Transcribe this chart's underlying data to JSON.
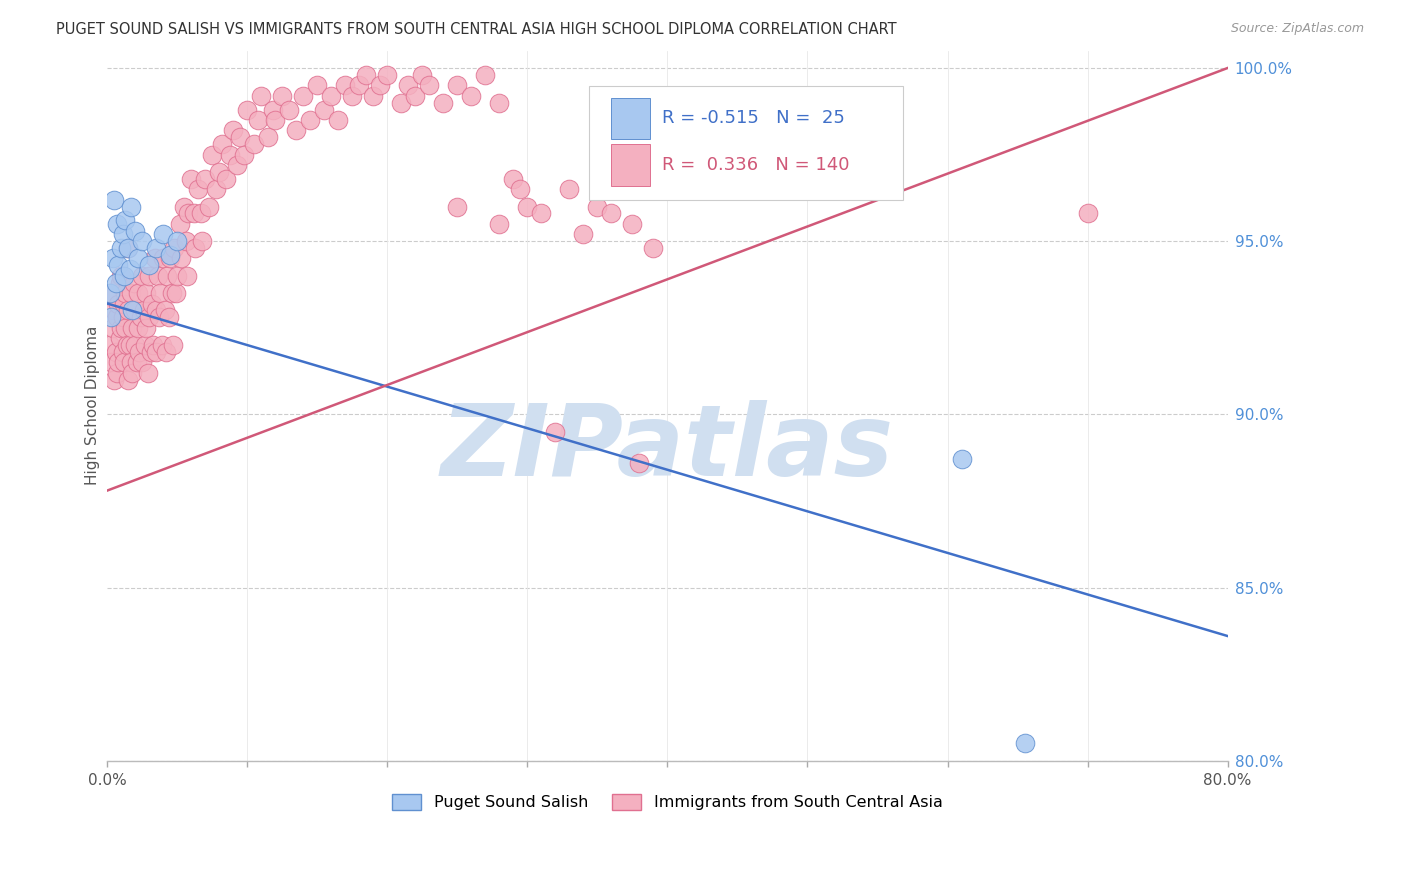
{
  "title": "PUGET SOUND SALISH VS IMMIGRANTS FROM SOUTH CENTRAL ASIA HIGH SCHOOL DIPLOMA CORRELATION CHART",
  "source": "Source: ZipAtlas.com",
  "ylabel": "High School Diploma",
  "x_min": 0.0,
  "x_max": 0.8,
  "y_min": 0.8,
  "y_max": 1.005,
  "y_ticks_right": [
    0.8,
    0.85,
    0.9,
    0.95,
    1.0
  ],
  "y_tick_labels_right": [
    "80.0%",
    "85.0%",
    "90.0%",
    "95.0%",
    "100.0%"
  ],
  "blue_fill": "#a8c8f0",
  "pink_fill": "#f4b0c0",
  "blue_edge": "#6090d0",
  "pink_edge": "#e07090",
  "blue_line_color": "#4070c8",
  "pink_line_color": "#d05878",
  "R_blue": -0.515,
  "N_blue": 25,
  "R_pink": 0.336,
  "N_pink": 140,
  "watermark": "ZIPatlas",
  "watermark_color": "#d0dff0",
  "legend_label_blue": "Puget Sound Salish",
  "legend_label_pink": "Immigrants from South Central Asia",
  "blue_line_x0": 0.0,
  "blue_line_y0": 0.932,
  "blue_line_x1": 0.8,
  "blue_line_y1": 0.836,
  "pink_line_x0": 0.0,
  "pink_line_y0": 0.878,
  "pink_line_x1": 0.8,
  "pink_line_y1": 1.0,
  "blue_x": [
    0.002,
    0.003,
    0.004,
    0.005,
    0.006,
    0.007,
    0.008,
    0.01,
    0.011,
    0.012,
    0.013,
    0.015,
    0.016,
    0.017,
    0.018,
    0.02,
    0.022,
    0.025,
    0.03,
    0.035,
    0.04,
    0.045,
    0.05,
    0.61,
    0.655
  ],
  "blue_y": [
    0.935,
    0.928,
    0.945,
    0.962,
    0.938,
    0.955,
    0.943,
    0.948,
    0.952,
    0.94,
    0.956,
    0.948,
    0.942,
    0.96,
    0.93,
    0.953,
    0.945,
    0.95,
    0.943,
    0.948,
    0.952,
    0.946,
    0.95,
    0.887,
    0.805
  ],
  "pink_x": [
    0.002,
    0.003,
    0.003,
    0.004,
    0.005,
    0.005,
    0.006,
    0.007,
    0.007,
    0.008,
    0.008,
    0.009,
    0.009,
    0.01,
    0.01,
    0.011,
    0.011,
    0.012,
    0.012,
    0.013,
    0.013,
    0.014,
    0.015,
    0.015,
    0.015,
    0.016,
    0.017,
    0.017,
    0.018,
    0.018,
    0.019,
    0.02,
    0.02,
    0.021,
    0.022,
    0.022,
    0.023,
    0.024,
    0.025,
    0.025,
    0.026,
    0.027,
    0.028,
    0.028,
    0.029,
    0.03,
    0.03,
    0.031,
    0.032,
    0.033,
    0.034,
    0.035,
    0.035,
    0.036,
    0.037,
    0.038,
    0.039,
    0.04,
    0.041,
    0.042,
    0.043,
    0.044,
    0.045,
    0.046,
    0.047,
    0.048,
    0.049,
    0.05,
    0.052,
    0.053,
    0.055,
    0.056,
    0.057,
    0.058,
    0.06,
    0.062,
    0.063,
    0.065,
    0.067,
    0.068,
    0.07,
    0.073,
    0.075,
    0.078,
    0.08,
    0.082,
    0.085,
    0.088,
    0.09,
    0.093,
    0.095,
    0.098,
    0.1,
    0.105,
    0.108,
    0.11,
    0.115,
    0.118,
    0.12,
    0.125,
    0.13,
    0.135,
    0.14,
    0.145,
    0.15,
    0.155,
    0.16,
    0.165,
    0.17,
    0.175,
    0.18,
    0.185,
    0.19,
    0.195,
    0.2,
    0.21,
    0.215,
    0.22,
    0.225,
    0.23,
    0.24,
    0.25,
    0.26,
    0.27,
    0.28,
    0.29,
    0.3,
    0.31,
    0.32,
    0.33,
    0.34,
    0.35,
    0.36,
    0.375,
    0.39,
    0.25,
    0.28,
    0.295,
    0.7,
    0.38
  ],
  "pink_y": [
    0.92,
    0.915,
    0.935,
    0.925,
    0.93,
    0.91,
    0.918,
    0.912,
    0.928,
    0.915,
    0.932,
    0.922,
    0.938,
    0.925,
    0.94,
    0.928,
    0.918,
    0.932,
    0.915,
    0.925,
    0.935,
    0.92,
    0.91,
    0.93,
    0.948,
    0.92,
    0.935,
    0.915,
    0.925,
    0.912,
    0.938,
    0.92,
    0.93,
    0.915,
    0.935,
    0.925,
    0.918,
    0.928,
    0.915,
    0.94,
    0.93,
    0.92,
    0.935,
    0.925,
    0.912,
    0.94,
    0.928,
    0.918,
    0.932,
    0.92,
    0.945,
    0.93,
    0.918,
    0.94,
    0.928,
    0.935,
    0.92,
    0.945,
    0.93,
    0.918,
    0.94,
    0.928,
    0.945,
    0.935,
    0.92,
    0.948,
    0.935,
    0.94,
    0.955,
    0.945,
    0.96,
    0.95,
    0.94,
    0.958,
    0.968,
    0.958,
    0.948,
    0.965,
    0.958,
    0.95,
    0.968,
    0.96,
    0.975,
    0.965,
    0.97,
    0.978,
    0.968,
    0.975,
    0.982,
    0.972,
    0.98,
    0.975,
    0.988,
    0.978,
    0.985,
    0.992,
    0.98,
    0.988,
    0.985,
    0.992,
    0.988,
    0.982,
    0.992,
    0.985,
    0.995,
    0.988,
    0.992,
    0.985,
    0.995,
    0.992,
    0.995,
    0.998,
    0.992,
    0.995,
    0.998,
    0.99,
    0.995,
    0.992,
    0.998,
    0.995,
    0.99,
    0.995,
    0.992,
    0.998,
    0.99,
    0.968,
    0.96,
    0.958,
    0.895,
    0.965,
    0.952,
    0.96,
    0.958,
    0.955,
    0.948,
    0.96,
    0.955,
    0.965,
    0.958,
    0.886
  ]
}
